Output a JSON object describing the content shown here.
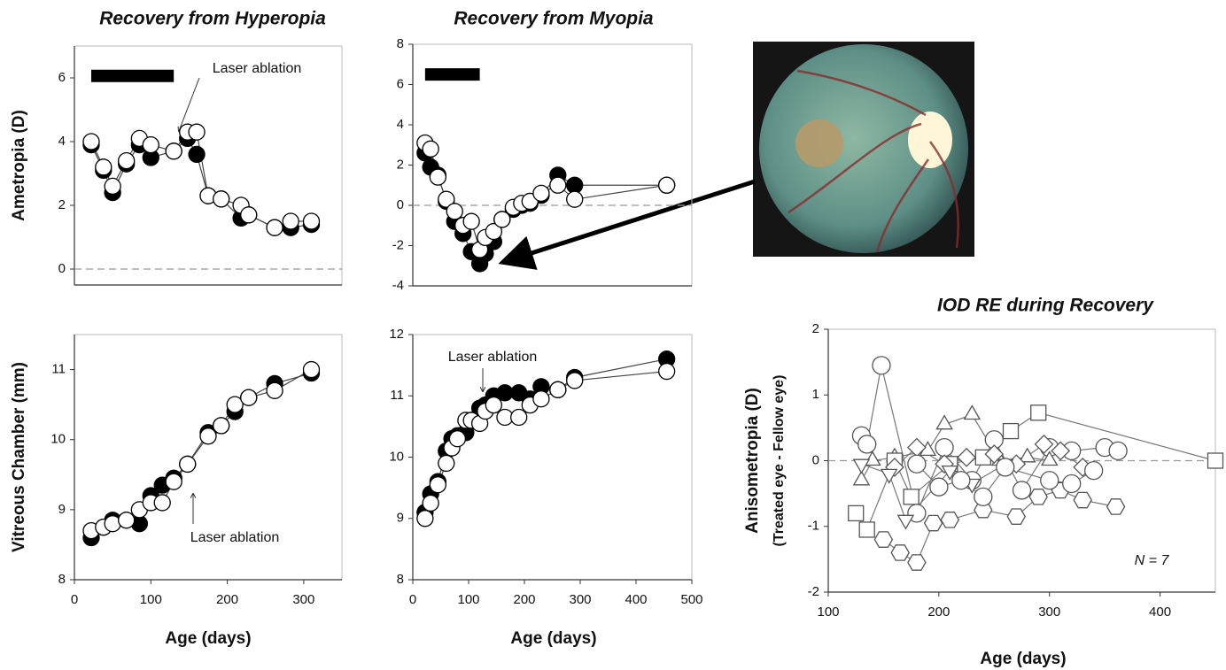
{
  "chart_data": [
    {
      "type": "line",
      "title": "Recovery from Hyperopia",
      "ylabel": "Ametropia (D)",
      "xlim": [
        0,
        350
      ],
      "ylim": [
        -0.5,
        7
      ],
      "yticks": [
        0,
        2,
        4,
        6
      ],
      "zero_line": true,
      "treatment_period": [
        22,
        130
      ],
      "annotation": "Laser ablation",
      "x": [
        22,
        38,
        50,
        68,
        85,
        100,
        130,
        148,
        160,
        175,
        192,
        218,
        228,
        262,
        283,
        310
      ],
      "series": [
        {
          "color": "#000000",
          "values": [
            3.9,
            3.1,
            2.4,
            3.3,
            3.9,
            3.5,
            3.7,
            4.1,
            3.6,
            2.3,
            2.2,
            1.6,
            1.7,
            1.3,
            1.3,
            1.4
          ]
        },
        {
          "color": "#ffffff",
          "values": [
            4.0,
            3.2,
            2.6,
            3.4,
            4.1,
            3.9,
            3.7,
            4.3,
            4.3,
            2.3,
            2.2,
            2.0,
            1.7,
            1.3,
            1.5,
            1.5
          ]
        }
      ]
    },
    {
      "type": "line",
      "ylabel": "Vitreous Chamber (mm)",
      "xlabel": "Age (days)",
      "xlim": [
        0,
        350
      ],
      "ylim": [
        8,
        11.5
      ],
      "xticks": [
        0,
        100,
        200,
        300
      ],
      "yticks": [
        8,
        9,
        10,
        11
      ],
      "annotation": "Laser ablation",
      "x": [
        22,
        38,
        50,
        68,
        85,
        100,
        115,
        130,
        148,
        175,
        192,
        210,
        228,
        262,
        310
      ],
      "series": [
        {
          "color": "#000000",
          "values": [
            8.6,
            8.75,
            8.85,
            8.85,
            8.8,
            9.2,
            9.35,
            9.45,
            9.65,
            10.1,
            10.2,
            10.4,
            10.6,
            10.8,
            10.95
          ]
        },
        {
          "color": "#ffffff",
          "values": [
            8.7,
            8.75,
            8.8,
            8.85,
            9.0,
            9.1,
            9.1,
            9.4,
            9.65,
            10.05,
            10.2,
            10.5,
            10.6,
            10.7,
            11.0
          ]
        }
      ]
    },
    {
      "type": "line",
      "title": "Recovery from Myopia",
      "xlim": [
        0,
        500
      ],
      "ylim": [
        -4,
        8
      ],
      "yticks": [
        -4,
        -2,
        0,
        2,
        4,
        6,
        8
      ],
      "zero_line": true,
      "treatment_period": [
        22,
        120
      ],
      "x": [
        22,
        32,
        45,
        60,
        75,
        90,
        105,
        120,
        130,
        145,
        160,
        180,
        195,
        210,
        230,
        260,
        290,
        455
      ],
      "series": [
        {
          "color": "#000000",
          "values": [
            2.6,
            1.9,
            1.5,
            0.2,
            -0.8,
            -1.4,
            -2.3,
            -2.9,
            -2.4,
            -1.8,
            -0.7,
            -0.2,
            0.0,
            0.1,
            0.5,
            1.5,
            1.0,
            1.0
          ]
        },
        {
          "color": "#ffffff",
          "values": [
            3.1,
            2.8,
            1.4,
            0.3,
            -0.3,
            -1.0,
            -0.8,
            -2.2,
            -1.6,
            -1.3,
            -0.7,
            -0.1,
            0.1,
            0.2,
            0.6,
            1.0,
            0.3,
            1.0
          ]
        }
      ]
    },
    {
      "type": "line",
      "xlabel": "Age (days)",
      "xlim": [
        0,
        500
      ],
      "ylim": [
        8,
        12
      ],
      "xticks": [
        0,
        100,
        200,
        300,
        400,
        500
      ],
      "yticks": [
        8,
        9,
        10,
        11,
        12
      ],
      "annotation": "Laser ablation",
      "x": [
        22,
        32,
        45,
        60,
        70,
        80,
        95,
        105,
        120,
        130,
        145,
        165,
        190,
        210,
        230,
        260,
        290,
        455
      ],
      "series": [
        {
          "color": "#000000",
          "values": [
            9.1,
            9.4,
            9.6,
            10.1,
            10.3,
            10.35,
            10.4,
            10.6,
            10.8,
            10.85,
            11.0,
            11.05,
            11.05,
            10.95,
            11.15,
            11.1,
            11.3,
            11.6
          ]
        },
        {
          "color": "#ffffff",
          "values": [
            9.0,
            9.25,
            9.55,
            9.9,
            10.15,
            10.3,
            10.6,
            10.6,
            10.55,
            10.75,
            10.85,
            10.65,
            10.65,
            10.85,
            10.95,
            11.1,
            11.25,
            11.4
          ]
        }
      ]
    },
    {
      "type": "line",
      "title": "IOD RE during Recovery",
      "ylabel": "Anisometropia (D)",
      "ylabel_note": "(Treated eye - Fellow eye)",
      "xlabel": "Age (days)",
      "annotation": "N = 7",
      "xlim": [
        100,
        450
      ],
      "ylim": [
        -2,
        2
      ],
      "xticks": [
        100,
        200,
        300,
        400
      ],
      "yticks": [
        -2,
        -1,
        0,
        1,
        2
      ],
      "zero_line": true,
      "series": [
        {
          "color": "#ffffff",
          "marker": "circle",
          "x": [
            130,
            135,
            148,
            180,
            205,
            230,
            250,
            275,
            300,
            320,
            350,
            362
          ],
          "values": [
            0.38,
            0.25,
            1.45,
            -0.8,
            0.2,
            -0.3,
            0.32,
            -0.45,
            0.2,
            0.15,
            0.2,
            0.15
          ]
        },
        {
          "color": "#ffffff",
          "marker": "triangle",
          "x": [
            130,
            140,
            160,
            190,
            205,
            230,
            255,
            280,
            300
          ],
          "values": [
            -0.3,
            0.0,
            0.05,
            0.15,
            0.55,
            0.7,
            0.0,
            0.05,
            0.0
          ]
        },
        {
          "color": "#ffffff",
          "marker": "square",
          "x": [
            125,
            135,
            160,
            175,
            210,
            240,
            265,
            290,
            450
          ],
          "values": [
            -0.8,
            -1.05,
            0.0,
            -0.55,
            -0.05,
            0.05,
            0.45,
            0.73,
            0.0
          ]
        },
        {
          "color": "#ffffff",
          "marker": "hexagon",
          "x": [
            150,
            165,
            180,
            195,
            210,
            240,
            270,
            290,
            310,
            330,
            360
          ],
          "values": [
            -1.2,
            -1.4,
            -1.55,
            -0.95,
            -0.9,
            -0.75,
            -0.85,
            -0.55,
            -0.45,
            -0.6,
            -0.7
          ]
        },
        {
          "color": "#ffffff",
          "marker": "diamond",
          "x": [
            160,
            180,
            205,
            225,
            250,
            270,
            295,
            310,
            330
          ],
          "values": [
            -0.1,
            0.2,
            -0.05,
            0.05,
            0.1,
            -0.05,
            0.25,
            0.15,
            -0.1
          ]
        },
        {
          "color": "#ffffff",
          "marker": "triangle-down",
          "x": [
            130,
            155,
            170,
            210,
            230,
            260
          ],
          "values": [
            -0.05,
            -0.2,
            -0.9,
            -0.15,
            -0.35,
            -0.05
          ]
        },
        {
          "color": "#ffffff",
          "marker": "circle",
          "x": [
            180,
            200,
            220,
            240,
            260,
            300,
            320,
            340
          ],
          "values": [
            -0.05,
            -0.4,
            -0.3,
            -0.55,
            -0.1,
            -0.3,
            -0.35,
            -0.15
          ]
        }
      ]
    }
  ]
}
